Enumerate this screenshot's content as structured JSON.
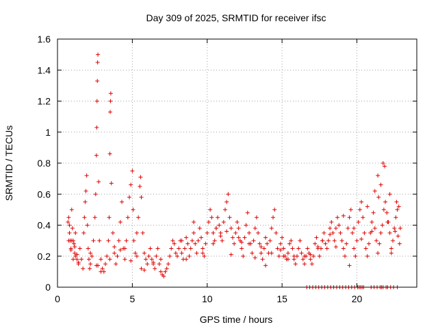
{
  "chart_data": {
    "type": "scatter",
    "title": "Day 309 of 2025, SRMTID for receiver ifsc",
    "xlabel": "GPS time / hours",
    "ylabel": "SRMTID / TECUs",
    "xlim": [
      0,
      24
    ],
    "ylim": [
      0,
      1.6
    ],
    "xticks": [
      0,
      5,
      10,
      15,
      20
    ],
    "xtick_labels": [
      "0",
      "5",
      "10",
      "15",
      "20"
    ],
    "yticks": [
      0,
      0.2,
      0.4,
      0.6,
      0.8,
      1,
      1.2,
      1.4,
      1.6
    ],
    "ytick_labels": [
      "0",
      "0.2",
      "0.4",
      "0.6",
      "0.8",
      "1",
      "1.2",
      "1.4",
      "1.6"
    ],
    "grid": true,
    "marker": "+",
    "marker_color": "#e00000",
    "series": [
      {
        "name": "SRMTID",
        "x": [
          0.7,
          0.75,
          0.8,
          0.85,
          0.9,
          0.95,
          1.0,
          1.05,
          1.1,
          1.15,
          1.2,
          1.3,
          1.4,
          1.5,
          1.6,
          1.7,
          1.75,
          1.8,
          1.85,
          1.9,
          1.95,
          2.0,
          2.05,
          2.1,
          2.15,
          2.2,
          2.3,
          2.4,
          2.5,
          2.55,
          2.6,
          2.62,
          2.64,
          2.66,
          2.68,
          2.7,
          2.75,
          2.8,
          2.9,
          3.0,
          3.1,
          3.2,
          3.3,
          3.4,
          3.45,
          3.5,
          3.52,
          3.54,
          3.56,
          3.6,
          3.7,
          3.8,
          3.9,
          4.0,
          4.1,
          4.2,
          4.3,
          4.4,
          4.5,
          4.6,
          4.7,
          4.8,
          4.9,
          5.0,
          5.05,
          5.1,
          5.2,
          5.3,
          5.4,
          5.5,
          5.55,
          5.6,
          5.7,
          5.8,
          5.9,
          6.0,
          6.1,
          6.2,
          6.3,
          6.4,
          6.5,
          6.6,
          6.7,
          6.8,
          6.9,
          7.0,
          7.1,
          7.2,
          7.3,
          7.4,
          7.5,
          7.6,
          7.7,
          7.8,
          7.9,
          8.0,
          8.1,
          8.2,
          8.3,
          8.4,
          8.5,
          8.6,
          8.7,
          8.8,
          8.9,
          9.0,
          9.1,
          9.2,
          9.3,
          9.4,
          9.5,
          9.6,
          9.7,
          9.8,
          9.9,
          10.0,
          10.1,
          10.2,
          10.3,
          10.4,
          10.5,
          10.6,
          10.7,
          10.8,
          10.9,
          11.0,
          11.1,
          11.2,
          11.3,
          11.4,
          11.5,
          11.6,
          11.7,
          11.8,
          11.9,
          12.0,
          12.1,
          12.2,
          12.3,
          12.4,
          12.5,
          12.6,
          12.7,
          12.8,
          12.9,
          13.0,
          13.1,
          13.2,
          13.3,
          13.4,
          13.5,
          13.6,
          13.7,
          13.8,
          13.9,
          14.0,
          14.1,
          14.2,
          14.3,
          14.4,
          14.5,
          14.6,
          14.7,
          14.8,
          14.9,
          15.0,
          15.1,
          15.2,
          15.3,
          15.4,
          15.5,
          15.6,
          15.7,
          15.8,
          15.9,
          16.0,
          16.1,
          16.2,
          16.3,
          16.4,
          16.5,
          16.6,
          16.7,
          16.8,
          16.9,
          17.0,
          17.1,
          17.2,
          17.3,
          17.4,
          17.5,
          17.6,
          17.7,
          17.8,
          17.9,
          18.0,
          18.1,
          18.2,
          18.3,
          18.4,
          18.5,
          18.6,
          18.7,
          18.8,
          18.9,
          19.0,
          19.1,
          19.2,
          19.3,
          19.4,
          19.5,
          19.6,
          19.7,
          19.8,
          19.9,
          20.0,
          20.1,
          20.2,
          20.3,
          20.4,
          20.5,
          20.6,
          20.7,
          20.8,
          20.9,
          21.0,
          21.1,
          21.2,
          21.3,
          21.4,
          21.5,
          21.6,
          21.7,
          21.8,
          21.9,
          22.0,
          22.1,
          22.2,
          22.3,
          22.4,
          22.5,
          22.6,
          22.7,
          22.8,
          22.9,
          0.75,
          0.9,
          1.05,
          1.15,
          1.3,
          2.6,
          2.9,
          3.5,
          4.2,
          4.9,
          5.3,
          5.6,
          6.4,
          8.6,
          9.7,
          10.4,
          10.9,
          11.6,
          12.3,
          13.2,
          13.9,
          14.9,
          15.4,
          16.9,
          17.7,
          18.6,
          19.5,
          19.8,
          20.7,
          21.2,
          21.45,
          21.6,
          21.75,
          21.85,
          22.05,
          22.3,
          22.55,
          22.75,
          22.85,
          0.8,
          0.95,
          1.2,
          1.4,
          2.2,
          2.7,
          3.8,
          4.5,
          5.8,
          6.9,
          8.3,
          9.1,
          10.6,
          11.3,
          12.1,
          12.8,
          13.6,
          14.3,
          15.1,
          15.8,
          16.5,
          17.4,
          18.2,
          19.1,
          20.3,
          21.0,
          21.4,
          22.2,
          22.65,
          16.65,
          16.85,
          17.05,
          17.25,
          17.45,
          17.65,
          17.85,
          18.05,
          18.25,
          18.45,
          18.65,
          18.85,
          19.05,
          19.25,
          19.45,
          19.65,
          19.85,
          20.05,
          20.15,
          20.25,
          20.35,
          20.45,
          20.95,
          21.15,
          21.35,
          21.55,
          21.65,
          21.75,
          21.95,
          22.05,
          22.25,
          22.45,
          22.7
        ],
        "y": [
          0.42,
          0.45,
          0.35,
          0.3,
          0.25,
          0.5,
          0.38,
          0.3,
          0.28,
          0.22,
          0.2,
          0.18,
          0.15,
          0.25,
          0.18,
          0.12,
          0.35,
          0.45,
          0.55,
          0.62,
          0.72,
          0.4,
          0.25,
          0.18,
          0.12,
          0.15,
          0.2,
          0.3,
          0.45,
          0.6,
          0.85,
          1.03,
          1.2,
          1.33,
          1.45,
          1.5,
          0.68,
          0.3,
          0.18,
          0.12,
          0.1,
          0.15,
          0.2,
          0.3,
          0.45,
          0.86,
          1.13,
          1.2,
          1.25,
          0.67,
          0.35,
          0.22,
          0.15,
          0.2,
          0.3,
          0.42,
          0.55,
          0.25,
          0.18,
          0.3,
          0.45,
          0.58,
          0.66,
          0.75,
          0.5,
          0.3,
          0.22,
          0.35,
          0.45,
          0.65,
          0.71,
          0.58,
          0.35,
          0.22,
          0.18,
          0.15,
          0.2,
          0.25,
          0.18,
          0.15,
          0.12,
          0.2,
          0.25,
          0.15,
          0.1,
          0.08,
          0.07,
          0.1,
          0.12,
          0.15,
          0.2,
          0.25,
          0.3,
          0.28,
          0.22,
          0.2,
          0.25,
          0.3,
          0.22,
          0.18,
          0.25,
          0.32,
          0.28,
          0.2,
          0.25,
          0.3,
          0.35,
          0.28,
          0.22,
          0.3,
          0.38,
          0.32,
          0.25,
          0.2,
          0.28,
          0.35,
          0.42,
          0.5,
          0.45,
          0.35,
          0.3,
          0.38,
          0.45,
          0.4,
          0.35,
          0.3,
          0.42,
          0.5,
          0.55,
          0.6,
          0.45,
          0.38,
          0.32,
          0.28,
          0.35,
          0.42,
          0.38,
          0.3,
          0.25,
          0.2,
          0.32,
          0.4,
          0.48,
          0.35,
          0.28,
          0.22,
          0.3,
          0.38,
          0.45,
          0.35,
          0.28,
          0.22,
          0.18,
          0.25,
          0.32,
          0.28,
          0.22,
          0.3,
          0.38,
          0.45,
          0.5,
          0.35,
          0.25,
          0.2,
          0.28,
          0.32,
          0.25,
          0.2,
          0.18,
          0.22,
          0.28,
          0.3,
          0.25,
          0.2,
          0.15,
          0.2,
          0.25,
          0.3,
          0.22,
          0.18,
          0.15,
          0.2,
          0.25,
          0.22,
          0.18,
          0.15,
          0.2,
          0.28,
          0.32,
          0.25,
          0.2,
          0.25,
          0.3,
          0.35,
          0.28,
          0.25,
          0.3,
          0.38,
          0.42,
          0.35,
          0.3,
          0.38,
          0.45,
          0.4,
          0.35,
          0.3,
          0.25,
          0.2,
          0.28,
          0.38,
          0.45,
          0.5,
          0.35,
          0.25,
          0.2,
          0.3,
          0.42,
          0.5,
          0.55,
          0.45,
          0.35,
          0.25,
          0.2,
          0.28,
          0.35,
          0.42,
          0.48,
          0.38,
          0.3,
          0.22,
          0.28,
          0.35,
          0.4,
          0.5,
          0.55,
          0.48,
          0.42,
          0.35,
          0.25,
          0.3,
          0.38,
          0.45,
          0.5,
          0.52,
          0.38,
          0.3,
          0.24,
          0.18,
          0.26,
          0.21,
          0.14,
          0.1,
          0.18,
          0.24,
          0.17,
          0.2,
          0.12,
          0.16,
          0.18,
          0.22,
          0.28,
          0.33,
          0.21,
          0.29,
          0.19,
          0.14,
          0.24,
          0.18,
          0.21,
          0.3,
          0.26,
          0.14,
          0.38,
          0.52,
          0.62,
          0.58,
          0.66,
          0.8,
          0.78,
          0.42,
          0.22,
          0.36,
          0.33,
          0.28,
          0.4,
          0.3,
          0.35,
          0.16,
          0.22,
          0.14,
          0.26,
          0.25,
          0.11,
          0.18,
          0.3,
          0.42,
          0.38,
          0.36,
          0.32,
          0.28,
          0.26,
          0.22,
          0.2,
          0.18,
          0.2,
          0.26,
          0.34,
          0.46,
          0.31,
          0.36,
          0.72,
          0.6,
          0.55,
          0,
          0,
          0,
          0,
          0,
          0,
          0,
          0,
          0,
          0,
          0,
          0,
          0,
          0,
          0,
          0,
          0,
          0,
          0,
          0,
          0,
          0,
          0,
          0,
          0,
          0,
          0,
          0,
          0,
          0,
          0,
          0,
          0
        ]
      }
    ]
  }
}
